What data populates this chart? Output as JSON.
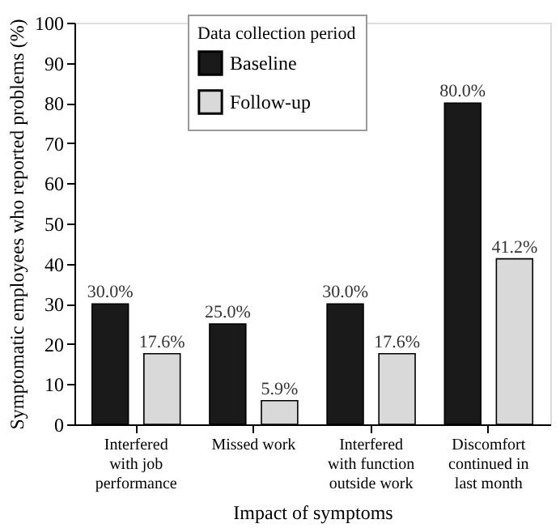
{
  "chart_data": {
    "type": "bar",
    "xlabel": "Impact of symptoms",
    "ylabel": "Symptomatic employees who reported problems (%)",
    "legend_title": "Data collection period",
    "categories": [
      "Interfered with job performance",
      "Missed work",
      "Interfered with function outside work",
      "Discomfort continued in last month"
    ],
    "series": [
      {
        "name": "Baseline",
        "color": "#1a1a1a",
        "values": [
          30.0,
          25.0,
          30.0,
          80.0
        ],
        "value_labels": [
          "30.0%",
          "25.0%",
          "30.0%",
          "80.0%"
        ]
      },
      {
        "name": "Follow-up",
        "color": "#d9d9d9",
        "values": [
          17.6,
          5.9,
          17.6,
          41.2
        ],
        "value_labels": [
          "17.6%",
          "5.9%",
          "17.6%",
          "41.2%"
        ]
      }
    ],
    "ylim": [
      0,
      100
    ],
    "yticks": [
      0,
      10,
      20,
      30,
      40,
      50,
      60,
      70,
      80,
      90,
      100
    ],
    "grid": false,
    "legend": "top"
  }
}
